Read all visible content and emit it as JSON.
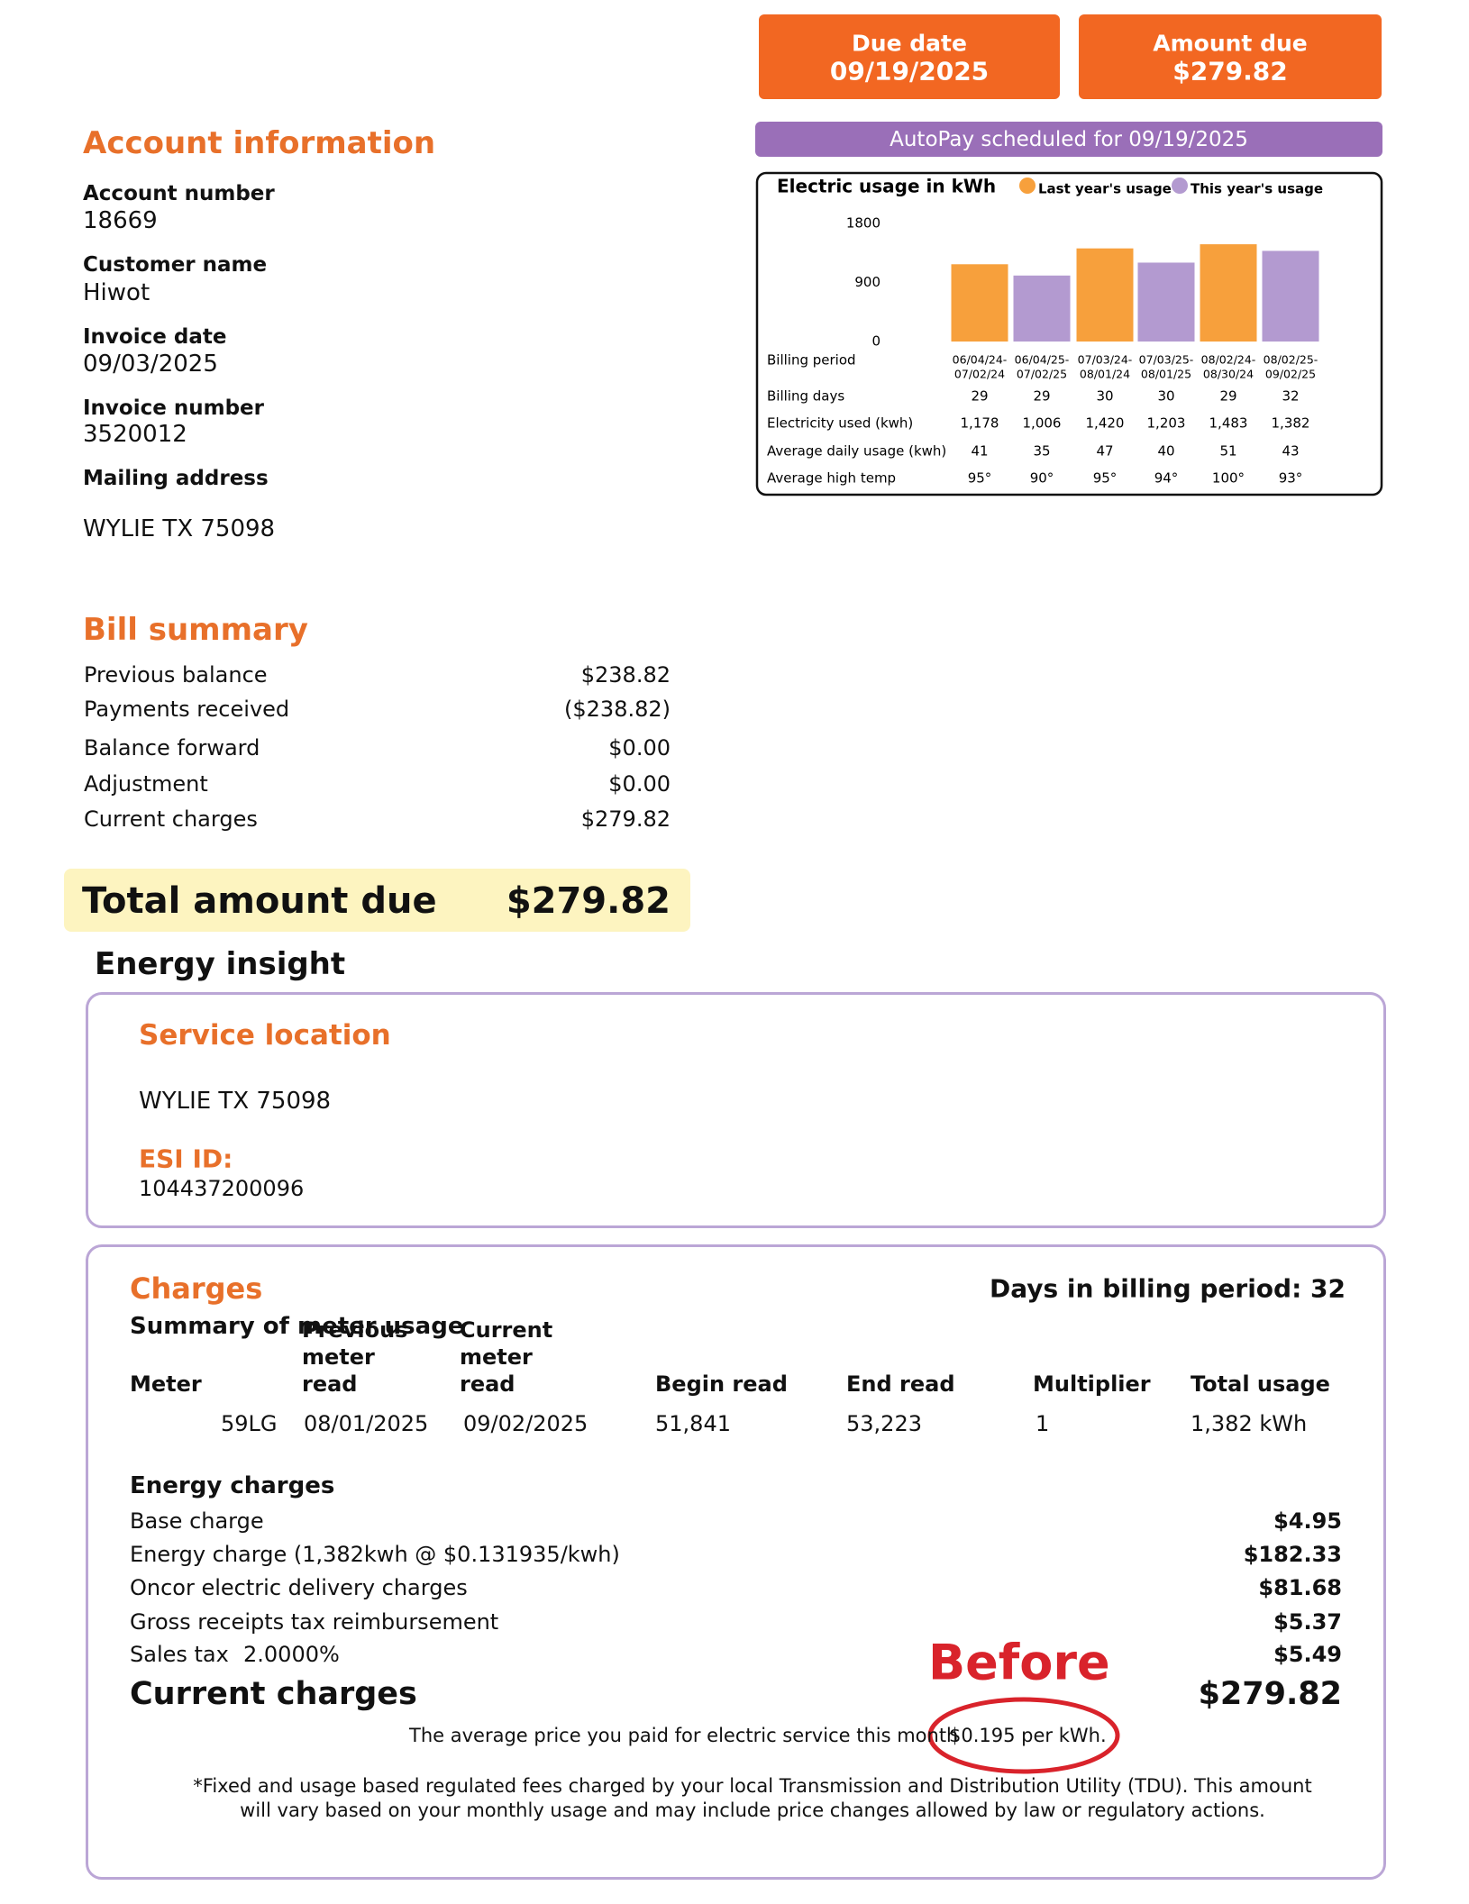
{
  "header": {
    "due_date_label": "Due date",
    "due_date": "09/19/2025",
    "amount_due_label": "Amount due",
    "amount_due": "$279.82",
    "autopay": "AutoPay scheduled for 09/19/2025"
  },
  "account": {
    "title": "Account information",
    "fields": [
      {
        "label": "Account number",
        "value": "18669"
      },
      {
        "label": "Customer name",
        "value": "Hiwot"
      },
      {
        "label": "Invoice date",
        "value": "09/03/2025"
      },
      {
        "label": "Invoice number",
        "value": "3520012"
      }
    ],
    "mailing_address_label": "Mailing address",
    "mailing_address": "WYLIE TX 75098"
  },
  "usage_chart": {
    "type": "bar",
    "title": "Electric usage in kWh",
    "series": [
      {
        "name": "Last year's usage",
        "color": "#f7a03c",
        "values": [
          1178,
          1420,
          1483
        ]
      },
      {
        "name": "This year's usage",
        "color": "#b39ad0",
        "values": [
          1006,
          1203,
          1382
        ]
      }
    ],
    "ylim": [
      0,
      1800
    ],
    "yticks": [
      0,
      900,
      1800
    ]
  },
  "usage_table": {
    "period_label": "Billing period",
    "periods": [
      [
        "06/04/24-",
        "07/02/24"
      ],
      [
        "06/04/25-",
        "07/02/25"
      ],
      [
        "07/03/24-",
        "08/01/24"
      ],
      [
        "07/03/25-",
        "08/01/25"
      ],
      [
        "08/02/24-",
        "08/30/24"
      ],
      [
        "08/02/25-",
        "09/02/25"
      ]
    ],
    "rows": [
      {
        "label": "Billing days",
        "cells": [
          "29",
          "29",
          "30",
          "30",
          "29",
          "32"
        ]
      },
      {
        "label": "Electricity used (kwh)",
        "cells": [
          "1,178",
          "1,006",
          "1,420",
          "1,203",
          "1,483",
          "1,382"
        ]
      },
      {
        "label": "Average daily usage (kwh)",
        "cells": [
          "41",
          "35",
          "47",
          "40",
          "51",
          "43"
        ]
      },
      {
        "label": "Average high temp",
        "cells": [
          "95°",
          "90°",
          "95°",
          "94°",
          "100°",
          "93°"
        ]
      }
    ]
  },
  "bill_summary": {
    "title": "Bill summary",
    "rows": [
      {
        "label": "Previous balance",
        "amount": "$238.82"
      },
      {
        "label": "Payments received",
        "amount": "($238.82)"
      },
      {
        "label": "Balance forward",
        "amount": "$0.00"
      },
      {
        "label": "Adjustment",
        "amount": "$0.00"
      },
      {
        "label": "Current charges",
        "amount": "$279.82"
      }
    ],
    "total_label": "Total amount due",
    "total": "$279.82"
  },
  "energy_insight": {
    "title": "Energy insight",
    "service_title": "Service location",
    "address": "WYLIE TX 75098",
    "esi_label": "ESI ID:",
    "esi_id": "104437200096"
  },
  "charges": {
    "title": "Charges",
    "days": "Days in billing period: 32",
    "meter_title": "Summary of meter usage",
    "meter_headers": [
      "Meter",
      "Previous meter read",
      "Current meter read",
      "Begin read",
      "End read",
      "Multiplier",
      "Total usage"
    ],
    "meter_row": [
      "59LG",
      "08/01/2025",
      "09/02/2025",
      "51,841",
      "53,223",
      "1",
      "1,382 kWh"
    ],
    "energy_title": "Energy charges",
    "items": [
      {
        "label": "Base charge",
        "amount": "$4.95"
      },
      {
        "label": "Energy charge (1,382kwh @ $0.131935/kwh)",
        "amount": "$182.33"
      },
      {
        "label": "Oncor electric delivery charges",
        "amount": "$81.68"
      },
      {
        "label": "Gross receipts tax reimbursement",
        "amount": "$5.37"
      },
      {
        "label": "Sales tax",
        "rate": "2.0000%",
        "amount": "$5.49"
      }
    ],
    "total_label": "Current charges",
    "total": "$279.82",
    "avg_text": "The average price you paid for electric service this month",
    "avg_price": "$0.195 per kWh.",
    "annotation": "Before",
    "footnote": "*Fixed and usage based regulated fees charged by your local Transmission and Distribution Utility (TDU). This amount will vary based on your monthly usage and may include price changes allowed by law or regulatory actions."
  }
}
